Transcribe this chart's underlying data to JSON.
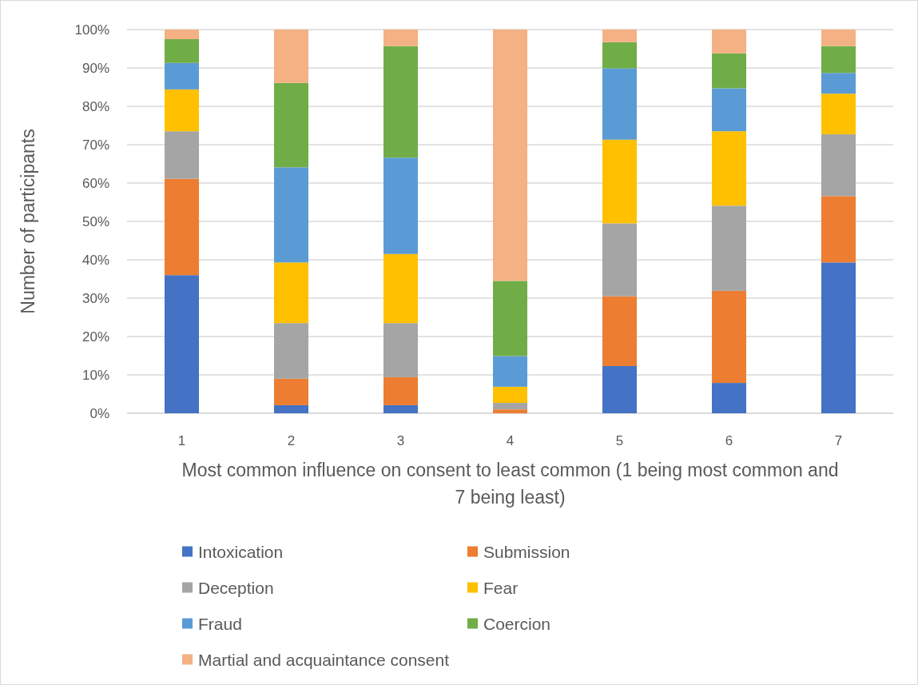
{
  "chart_data": {
    "type": "bar",
    "stacked": true,
    "categories": [
      "1",
      "2",
      "3",
      "4",
      "5",
      "6",
      "7"
    ],
    "series": [
      {
        "name": "Intoxication",
        "color": "#4472c4",
        "values": [
          36.0,
          2.1,
          2.1,
          0,
          12.3,
          7.9,
          39.3
        ]
      },
      {
        "name": "Submission",
        "color": "#ed7d31",
        "values": [
          25.1,
          6.9,
          7.3,
          1.0,
          18.2,
          24.0,
          17.3
        ]
      },
      {
        "name": "Deception",
        "color": "#a5a5a5",
        "values": [
          12.4,
          14.5,
          14.1,
          1.7,
          19.0,
          22.2,
          16.1
        ]
      },
      {
        "name": "Fear",
        "color": "#ffc000",
        "values": [
          10.9,
          15.8,
          18.0,
          4.2,
          21.8,
          19.4,
          10.6
        ]
      },
      {
        "name": "Fraud",
        "color": "#5b9bd5",
        "values": [
          6.9,
          24.8,
          25.1,
          8.0,
          18.6,
          11.2,
          5.4
        ]
      },
      {
        "name": "Coercion",
        "color": "#70ad47",
        "values": [
          6.2,
          22.0,
          29.1,
          19.6,
          6.8,
          9.1,
          7.0
        ]
      },
      {
        "name": "Martial and acquaintance consent",
        "color": "#f4b183",
        "values": [
          2.5,
          13.9,
          4.3,
          65.5,
          3.3,
          6.2,
          4.3
        ]
      }
    ],
    "ylim": [
      0,
      100
    ],
    "yticks": [
      {
        "value": 0,
        "label": "0%"
      },
      {
        "value": 10,
        "label": "10%"
      },
      {
        "value": 20,
        "label": "20%"
      },
      {
        "value": 30,
        "label": "30%"
      },
      {
        "value": 40,
        "label": "40%"
      },
      {
        "value": 50,
        "label": "50%"
      },
      {
        "value": 60,
        "label": "60%"
      },
      {
        "value": 70,
        "label": "70%"
      },
      {
        "value": 80,
        "label": "80%"
      },
      {
        "value": 90,
        "label": "90%"
      },
      {
        "value": 100,
        "label": "100%"
      }
    ],
    "grid": "y",
    "legend": "bottom",
    "xlabel": "Most common influence on consent to least common (1 being most common and 7 being least)",
    "ylabel": "Number of participants"
  }
}
